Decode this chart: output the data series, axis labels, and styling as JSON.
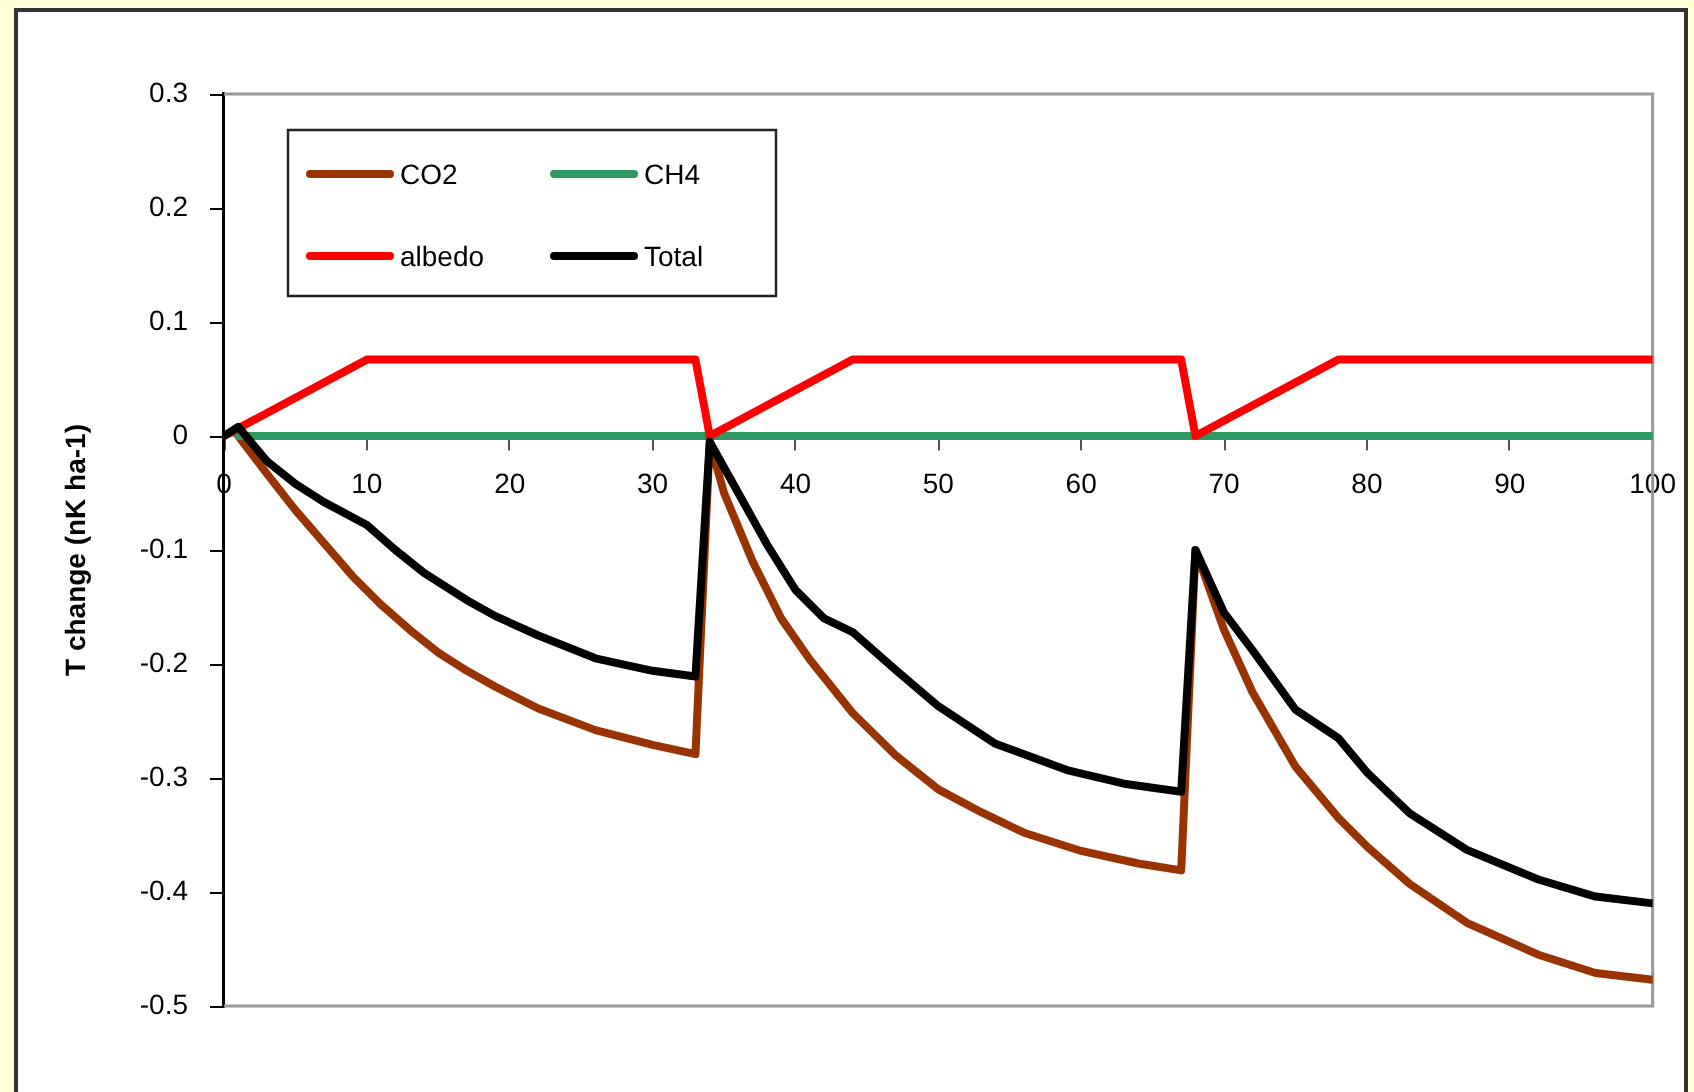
{
  "chart_data": {
    "type": "line",
    "ylabel": "T change (nK ha-1)",
    "xlim": [
      0,
      100
    ],
    "xticks": [
      0,
      10,
      20,
      30,
      40,
      50,
      60,
      70,
      80,
      90,
      100
    ],
    "ylim": [
      -0.5,
      0.3
    ],
    "yticks": [
      -0.5,
      -0.4,
      -0.3,
      -0.2,
      -0.1,
      0,
      0.1,
      0.2,
      0.3
    ],
    "grid": false,
    "legend": "top left",
    "marker": "none",
    "line_style": "solid",
    "series": [
      {
        "name": "CO2",
        "color": "#993300",
        "x": [
          1,
          3,
          5,
          7,
          9,
          11,
          13,
          15,
          17,
          19,
          22,
          26,
          30,
          33,
          34,
          35,
          37,
          39,
          41,
          44,
          47,
          50,
          53,
          56,
          60,
          64,
          67,
          68,
          70,
          72,
          75,
          78,
          80,
          83,
          87,
          92,
          96,
          100
        ],
        "values": [
          0,
          -0.033,
          -0.065,
          -0.094,
          -0.123,
          -0.148,
          -0.17,
          -0.19,
          -0.206,
          -0.22,
          -0.239,
          -0.258,
          -0.271,
          -0.279,
          -0.005,
          -0.05,
          -0.11,
          -0.16,
          -0.196,
          -0.243,
          -0.28,
          -0.31,
          -0.33,
          -0.348,
          -0.364,
          -0.375,
          -0.381,
          -0.1,
          -0.17,
          -0.225,
          -0.29,
          -0.335,
          -0.36,
          -0.393,
          -0.427,
          -0.455,
          -0.471,
          -0.477
        ]
      },
      {
        "name": "CH4",
        "color": "#2e9a62",
        "x": [
          1,
          100
        ],
        "values": [
          0,
          0
        ]
      },
      {
        "name": "albedo",
        "color": "#ff0000",
        "x": [
          0,
          10,
          33,
          34,
          44,
          67,
          68,
          78,
          100
        ],
        "values": [
          0,
          0.067,
          0.067,
          0,
          0.067,
          0.067,
          0,
          0.067,
          0.067
        ]
      },
      {
        "name": "Total",
        "color": "#000000",
        "x": [
          0,
          1,
          3,
          5,
          7,
          10,
          12,
          14,
          17,
          19,
          22,
          26,
          30,
          33,
          34,
          36,
          38,
          40,
          42,
          44,
          47,
          50,
          54,
          59,
          63,
          67,
          68,
          70,
          72,
          75,
          78,
          80,
          83,
          87,
          92,
          96,
          100
        ],
        "values": [
          0,
          0.008,
          -0.022,
          -0.042,
          -0.058,
          -0.078,
          -0.1,
          -0.12,
          -0.144,
          -0.158,
          -0.175,
          -0.195,
          -0.206,
          -0.211,
          -0.005,
          -0.05,
          -0.095,
          -0.135,
          -0.16,
          -0.172,
          -0.205,
          -0.237,
          -0.27,
          -0.293,
          -0.305,
          -0.312,
          -0.1,
          -0.155,
          -0.188,
          -0.24,
          -0.265,
          -0.295,
          -0.331,
          -0.363,
          -0.389,
          -0.404,
          -0.41
        ]
      }
    ]
  }
}
